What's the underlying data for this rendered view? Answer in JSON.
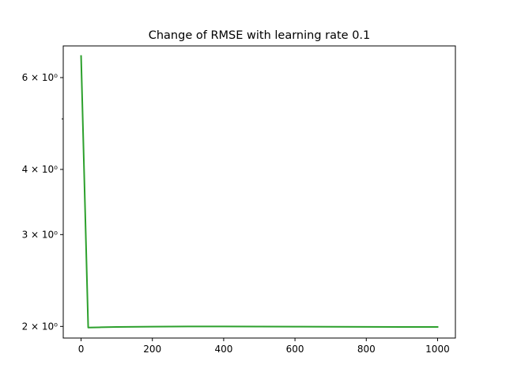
{
  "chart_data": {
    "type": "line",
    "title": "Change of RMSE with learning rate 0.1",
    "xlabel": "",
    "ylabel": "",
    "y_scale": "log",
    "xlim": [
      -50,
      1050
    ],
    "ylim": [
      1.9,
      6.9
    ],
    "x_ticks": [
      {
        "value": 0,
        "label": "0"
      },
      {
        "value": 200,
        "label": "200"
      },
      {
        "value": 400,
        "label": "400"
      },
      {
        "value": 600,
        "label": "600"
      },
      {
        "value": 800,
        "label": "800"
      },
      {
        "value": 1000,
        "label": "1000"
      }
    ],
    "y_major_ticks": [
      {
        "value": 2,
        "label": "2 × 10⁰"
      },
      {
        "value": 3,
        "label": "3 × 10⁰"
      },
      {
        "value": 4,
        "label": "4 × 10⁰"
      },
      {
        "value": 6,
        "label": "6 × 10⁰"
      }
    ],
    "y_minor_ticks": [
      5
    ],
    "grid": false,
    "series": [
      {
        "color": "#2ca02c",
        "x": [
          0,
          20,
          50,
          100,
          200,
          300,
          400,
          500,
          600,
          700,
          800,
          900,
          1000
        ],
        "y": [
          6.6,
          1.99,
          1.992,
          1.995,
          1.998,
          2.0,
          2.0,
          1.999,
          1.998,
          1.997,
          1.996,
          1.995,
          1.995
        ]
      }
    ]
  }
}
